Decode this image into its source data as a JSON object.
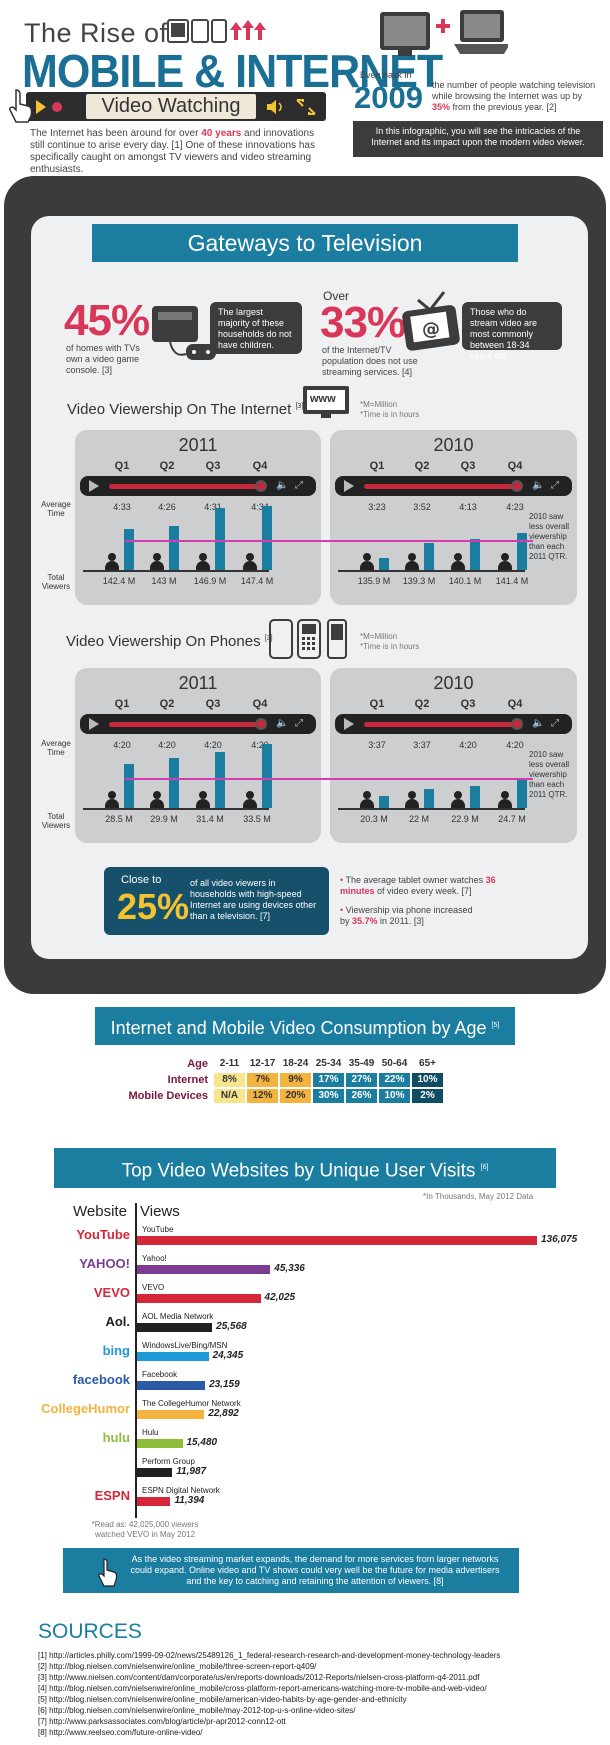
{
  "header": {
    "title_line1": "The Rise of",
    "title_line2": "MOBILE & INTERNET",
    "title_line3": "Video Watching",
    "intro_pre": "The Internet has been around for over ",
    "intro_hl": "40 years",
    "intro_post": " and innovations still continue to arise every day. [1] One of these innovations has specifically caught on amongst TV viewers and video streaming enthusiasts.",
    "even_back": "Even back in",
    "year": "2009",
    "year_text_pre": "the number of people watching television while browsing the Internet was up by ",
    "year_text_hl": "35%",
    "year_text_post": " from the previous year. [2]",
    "dark_text": "In this infographic, you will see the intricacies of the Internet and its impact upon the modern video viewer."
  },
  "gateways": {
    "title": "Gateways to Television",
    "stat1_pct": "45%",
    "stat1_text": "of homes with TVs own a video game console. [3]",
    "stat1_box": "The largest majority of these households do not have children.",
    "stat2_over": "Over",
    "stat2_pct": "33%",
    "stat2_text": "of the Internet/TV population does not use streaming services. [4]",
    "stat2_box": "Those who do stream video are most commonly between 18-34 years old."
  },
  "internet": {
    "title": "Video Viewership On The Internet",
    "ref": "[3]",
    "www": "www",
    "note1": "*M=Million",
    "note2": "*Time is in hours",
    "avg_label": "Average Time",
    "viewers_label": "Total Viewers",
    "panel2011": {
      "year": "2011",
      "quarters": [
        "Q1",
        "Q2",
        "Q3",
        "Q4"
      ],
      "times": [
        "4:33",
        "4:26",
        "4:31",
        "4:34"
      ],
      "viewers": [
        "142.4 M",
        "143 M",
        "146.9 M",
        "147.4 M"
      ]
    },
    "panel2010": {
      "year": "2010",
      "quarters": [
        "Q1",
        "Q2",
        "Q3",
        "Q4"
      ],
      "times": [
        "3:23",
        "3:52",
        "4:13",
        "4:23"
      ],
      "viewers": [
        "135.9 M",
        "139.3 M",
        "140.1 M",
        "141.4 M"
      ],
      "note": "2010 saw less overall viewership than each 2011 QTR."
    }
  },
  "phones": {
    "title": "Video Viewership On Phones",
    "ref": "[3]",
    "note1": "*M=Million",
    "note2": "*Time is in hours",
    "avg_label": "Average Time",
    "viewers_label": "Total Viewers",
    "panel2011": {
      "year": "2011",
      "quarters": [
        "Q1",
        "Q2",
        "Q3",
        "Q4"
      ],
      "times": [
        "4:20",
        "4:20",
        "4:20",
        "4:20"
      ],
      "viewers": [
        "28.5 M",
        "29.9 M",
        "31.4 M",
        "33.5 M"
      ]
    },
    "panel2010": {
      "year": "2010",
      "quarters": [
        "Q1",
        "Q2",
        "Q3",
        "Q4"
      ],
      "times": [
        "3:37",
        "3:37",
        "4:20",
        "4:20"
      ],
      "viewers": [
        "20.3 M",
        "22 M",
        "22.9 M",
        "24.7 M"
      ],
      "note": "2010 saw less overall viewership than each 2011 QTR."
    }
  },
  "close": {
    "close_to": "Close to",
    "pct": "25%",
    "text": "of all video viewers in households with high-speed Internet are using devices other than a television. [7]",
    "bullet1_pre": "The average tablet owner watches ",
    "bullet1_hl": "36 minutes",
    "bullet1_post": " of video every week. [7]",
    "bullet2_pre": "Viewership via phone increased by ",
    "bullet2_hl": "35.7%",
    "bullet2_post": " in 2011. [3]"
  },
  "age": {
    "title": "Internet and Mobile Video Consumption by Age",
    "ref": "[5]",
    "header_label": "Age",
    "ages": [
      "2-11",
      "12-17",
      "18-24",
      "25-34",
      "35-49",
      "50-64",
      "65+"
    ],
    "internet_label": "Internet",
    "internet": [
      "8%",
      "7%",
      "9%",
      "17%",
      "27%",
      "22%",
      "10%"
    ],
    "mobile_label": "Mobile Devices",
    "mobile": [
      "N/A",
      "12%",
      "20%",
      "30%",
      "26%",
      "10%",
      "2%"
    ],
    "colors": [
      "#f7e48f",
      "#f4b23f",
      "#f4b23f",
      "#1b7ea1",
      "#1b7ea1",
      "#1b7ea1",
      "#0f4c66"
    ]
  },
  "sites": {
    "title": "Top Video Websites by Unique User Visits",
    "ref": "[6]",
    "note": "*In Thousands, May 2012 Data",
    "col_website": "Website",
    "col_views": "Views",
    "footnote": "*Read as: 42,025,000 viewers watched VEVO in May 2012",
    "logos": [
      "YouTube",
      "YAHOO!",
      "VEVO",
      "Aol.",
      "bing",
      "facebook",
      "CollegeHumor",
      "hulu",
      "",
      "ESPN"
    ]
  },
  "chart_data": {
    "type": "bar",
    "categories": [
      "YouTube",
      "Yahoo!",
      "VEVO",
      "AOL Media Network",
      "WindowsLive/Bing/MSN",
      "Facebook",
      "The CollegeHumor Network",
      "Hulu",
      "Perform Group",
      "ESPN Digital Network"
    ],
    "values": [
      136075,
      45336,
      42025,
      25568,
      24345,
      23159,
      22892,
      15480,
      11987,
      11394
    ],
    "labels": [
      "136,075",
      "45,336",
      "42,025",
      "25,568",
      "24,345",
      "23,159",
      "22,892",
      "15,480",
      "11,987",
      "11,394"
    ],
    "colors": [
      "#d6273a",
      "#7b3d94",
      "#d6273a",
      "#222222",
      "#1f9ad6",
      "#2b5aa6",
      "#f4b23f",
      "#8dbe3a",
      "#222222",
      "#d6273a"
    ],
    "title": "Top Video Websites by Unique User Visits",
    "xlabel": "",
    "ylabel": ""
  },
  "bottom": {
    "text": "As the video streaming market expands, the demand for more services from larger networks could expand. Online video and TV shows could very well be the future for media advertisers and the key to catching and retaining the attention of viewers. [8]"
  },
  "sources": {
    "title": "SOURCES",
    "items": [
      "[1] http://articles.philly.com/1999-09-02/news/25489126_1_federal-research-research-and-development-money-technology-leaders",
      "[2] http://blog.nielsen.com/nielsenwire/online_mobile/three-screen-report-q409/",
      "[3] http://www.nielsen.com/content/dam/corporate/us/en/reports-downloads/2012-Reports/nielsen-cross-platform-q4-2011.pdf",
      "[4] http://blog.nielsen.com/nielsenwire/online_mobile/cross-platform-report-americans-watching-more-tv-mobile-and-web-video/",
      "[5] http://blog.nielsen.com/nielsenwire/online_mobile/american-video-habits-by-age-gender-and-ethnicity",
      "[6] http://blog.nielsen.com/nielsenwire/online_mobile/may-2012-top-u-s-online-video-sites/",
      "[7] http://www.parksassociates.com/blog/article/pr-apr2012-conn12-ott",
      "[8] http://www.reelseo.com/future-online-video/"
    ]
  }
}
